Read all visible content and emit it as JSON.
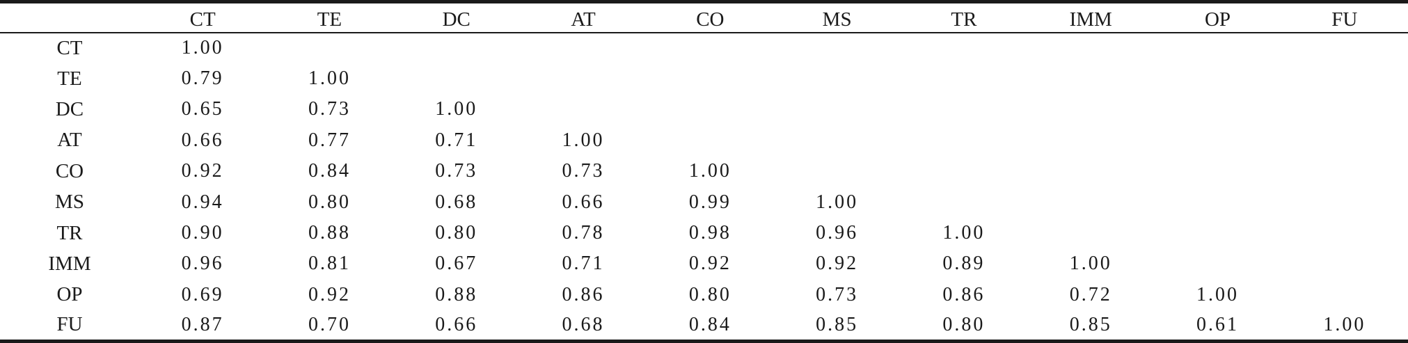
{
  "table": {
    "corner": "",
    "columns": [
      "CT",
      "TE",
      "DC",
      "AT",
      "CO",
      "MS",
      "TR",
      "IMM",
      "OP",
      "FU"
    ],
    "rows": [
      {
        "label": "CT",
        "cells": [
          "1.00",
          "",
          "",
          "",
          "",
          "",
          "",
          "",
          "",
          ""
        ]
      },
      {
        "label": "TE",
        "cells": [
          "0.79",
          "1.00",
          "",
          "",
          "",
          "",
          "",
          "",
          "",
          ""
        ]
      },
      {
        "label": "DC",
        "cells": [
          "0.65",
          "0.73",
          "1.00",
          "",
          "",
          "",
          "",
          "",
          "",
          ""
        ]
      },
      {
        "label": "AT",
        "cells": [
          "0.66",
          "0.77",
          "0.71",
          "1.00",
          "",
          "",
          "",
          "",
          "",
          ""
        ]
      },
      {
        "label": "CO",
        "cells": [
          "0.92",
          "0.84",
          "0.73",
          "0.73",
          "1.00",
          "",
          "",
          "",
          "",
          ""
        ]
      },
      {
        "label": "MS",
        "cells": [
          "0.94",
          "0.80",
          "0.68",
          "0.66",
          "0.99",
          "1.00",
          "",
          "",
          "",
          ""
        ]
      },
      {
        "label": "TR",
        "cells": [
          "0.90",
          "0.88",
          "0.80",
          "0.78",
          "0.98",
          "0.96",
          "1.00",
          "",
          "",
          ""
        ]
      },
      {
        "label": "IMM",
        "cells": [
          "0.96",
          "0.81",
          "0.67",
          "0.71",
          "0.92",
          "0.92",
          "0.89",
          "1.00",
          "",
          ""
        ]
      },
      {
        "label": "OP",
        "cells": [
          "0.69",
          "0.92",
          "0.88",
          "0.86",
          "0.80",
          "0.73",
          "0.86",
          "0.72",
          "1.00",
          ""
        ]
      },
      {
        "label": "FU",
        "cells": [
          "0.87",
          "0.70",
          "0.66",
          "0.68",
          "0.84",
          "0.85",
          "0.80",
          "0.85",
          "0.61",
          "1.00"
        ]
      }
    ]
  }
}
